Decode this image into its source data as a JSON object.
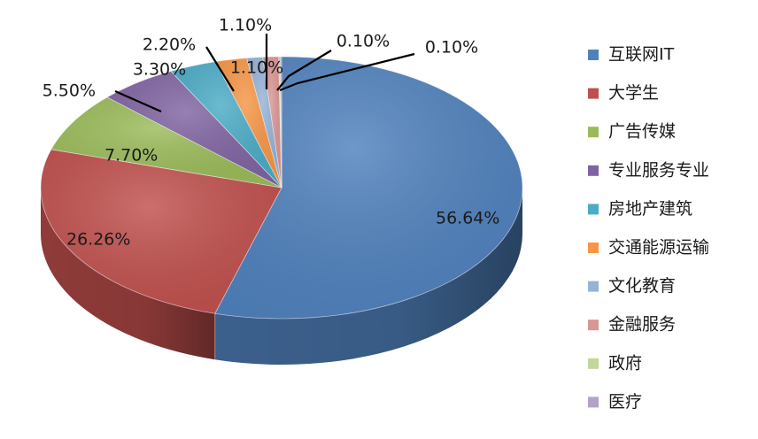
{
  "chart_data": {
    "type": "pie",
    "style": "3d",
    "legend_position": "right",
    "slices": [
      {
        "name": "互联网IT",
        "value": 56.64,
        "label": "56.64%",
        "color": "#4f81bd"
      },
      {
        "name": "大学生",
        "value": 26.26,
        "label": "26.26%",
        "color": "#c0504d"
      },
      {
        "name": "广告传媒",
        "value": 7.7,
        "label": "7.70%",
        "color": "#9bbb59"
      },
      {
        "name": "专业服务专业",
        "value": 5.5,
        "label": "5.50%",
        "color": "#8064a2"
      },
      {
        "name": "房地产建筑",
        "value": 3.3,
        "label": "3.30%",
        "color": "#4bacc6"
      },
      {
        "name": "交通能源运输",
        "value": 2.2,
        "label": "2.20%",
        "color": "#f79646"
      },
      {
        "name": "文化教育",
        "value": 1.1,
        "label": "1.10%",
        "color": "#95b3d7"
      },
      {
        "name": "金融服务",
        "value": 1.1,
        "label": "1.10%",
        "color": "#d99694"
      },
      {
        "name": "政府",
        "value": 0.1,
        "label": "0.10%",
        "color": "#c3d69b"
      },
      {
        "name": "医疗",
        "value": 0.1,
        "label": "0.10%",
        "color": "#b2a2c7"
      }
    ]
  }
}
